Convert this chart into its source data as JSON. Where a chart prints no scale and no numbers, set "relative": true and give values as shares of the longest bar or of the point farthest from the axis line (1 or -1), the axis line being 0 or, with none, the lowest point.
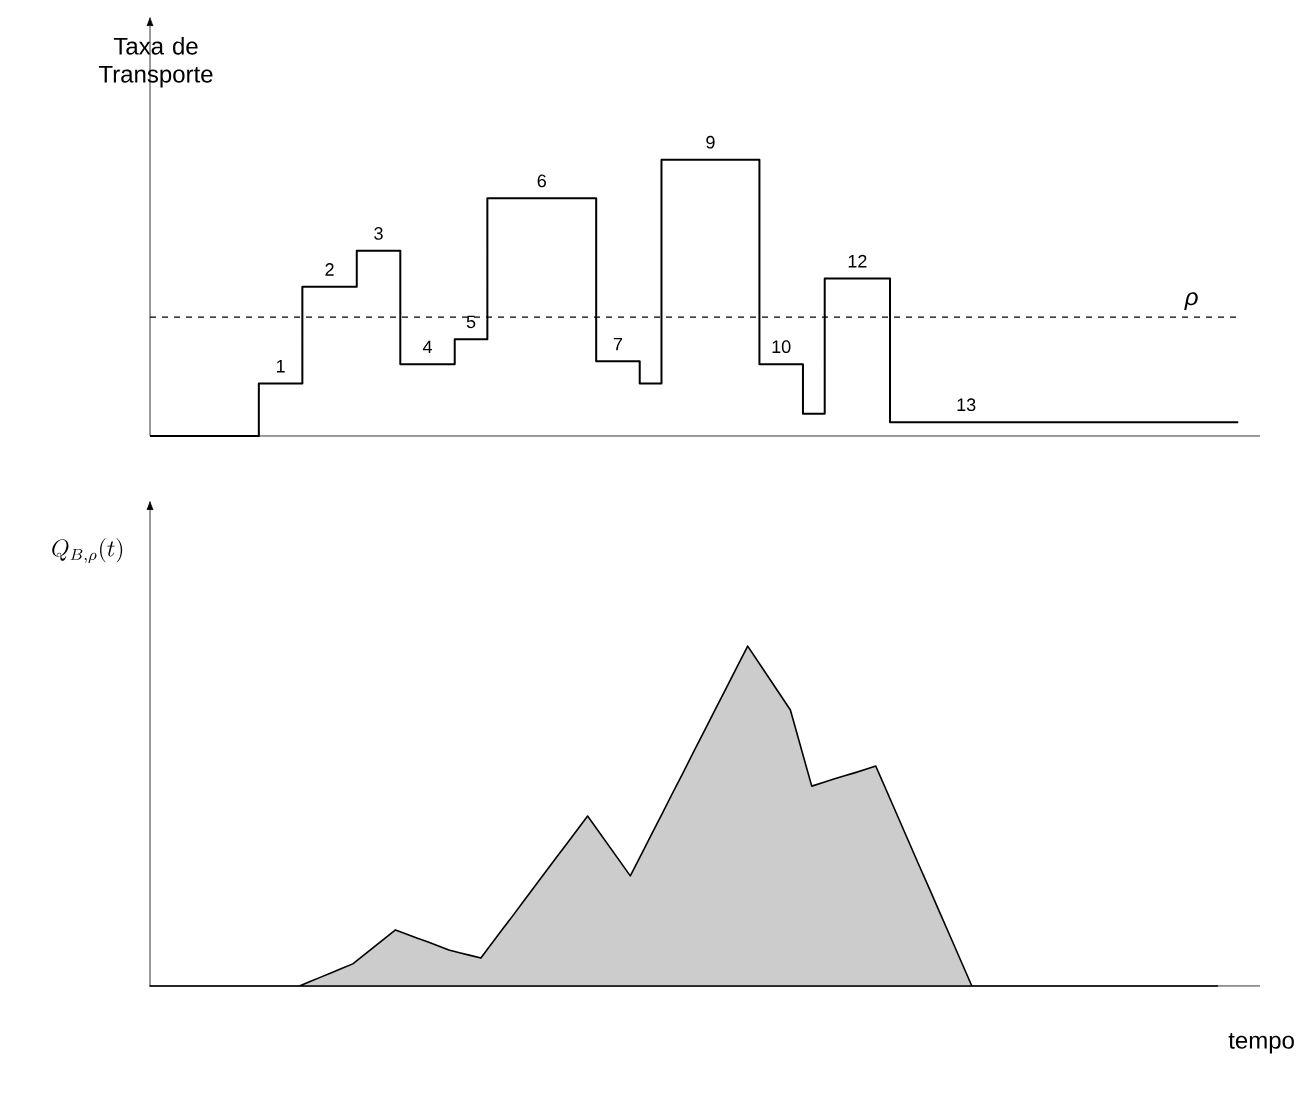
{
  "chart_data": [
    {
      "type": "step",
      "relative": true,
      "ylabel": "Taxa de Transporte",
      "color": "#000000",
      "categories": [
        null,
        null,
        null,
        null,
        null,
        null,
        null,
        null,
        null,
        null,
        null,
        null,
        null,
        null,
        null,
        null,
        null,
        null,
        null,
        null,
        null,
        null,
        null,
        null,
        null,
        null,
        null,
        null,
        null,
        null,
        null,
        null,
        null,
        null,
        null,
        null,
        null,
        null,
        null,
        null,
        null,
        null,
        null,
        null,
        null,
        null,
        null,
        null,
        null,
        null,
        null,
        null,
        null,
        null,
        null,
        null,
        null,
        null,
        null,
        null,
        null,
        null,
        null,
        null,
        null,
        null,
        null,
        null,
        null,
        null,
        null,
        null,
        null,
        null,
        null,
        null,
        null,
        null,
        null,
        null,
        null,
        null,
        null,
        null,
        null,
        null,
        null,
        null,
        null,
        null,
        null,
        null,
        null,
        null,
        null,
        null,
        null,
        null,
        null,
        null,
        null
      ],
      "values": [
        0,
        0,
        0,
        0,
        0,
        0,
        0,
        0,
        0,
        0,
        0.19,
        0.19,
        0.19,
        0.19,
        0.54,
        0.54,
        0.54,
        0.54,
        0.54,
        0.67,
        0.67,
        0.67,
        0.67,
        0.26,
        0.26,
        0.26,
        0.26,
        0.26,
        0.35,
        0.35,
        0.35,
        0.86,
        0.86,
        0.86,
        0.86,
        0.86,
        0.86,
        0.86,
        0.86,
        0.86,
        0.86,
        0.27,
        0.27,
        0.27,
        0.27,
        0.19,
        0.19,
        1,
        1,
        1,
        1,
        1,
        1,
        1,
        1,
        1,
        0.26,
        0.26,
        0.26,
        0.26,
        0.08,
        0.08,
        0.57,
        0.57,
        0.57,
        0.57,
        0.57,
        0.57,
        0.05,
        0.05,
        0.05,
        0.05,
        0.05,
        0.05,
        0.05,
        0.05,
        0.05,
        0.05,
        0.05,
        0.05,
        0.05,
        0.05,
        0.05,
        0.05,
        0.05,
        0.05,
        0.05,
        0.05,
        0.05,
        0.05,
        0.05,
        0.05,
        0.05,
        0.05,
        0.05,
        0.05,
        0.05,
        0.05,
        0.05,
        0.05,
        0.05
      ],
      "annotations": [
        "1",
        "2",
        "3",
        "4",
        "5",
        "6",
        "7",
        "9",
        "10",
        "12",
        "13"
      ],
      "ref_lines": [
        {
          "axis": "y",
          "value": 0.43,
          "label": "ρ",
          "line_style": "dashed"
        }
      ]
    },
    {
      "type": "area",
      "relative": true,
      "ylabel": "Q_{B,\\rho}(t)",
      "xlabel": "tempo",
      "color": "#cccccc",
      "categories": [
        null,
        null,
        null,
        null,
        null,
        null,
        null,
        null,
        null,
        null,
        null,
        null,
        null,
        null,
        null,
        null,
        null,
        null,
        null,
        null,
        null,
        null,
        null,
        null,
        null,
        null,
        null,
        null,
        null,
        null,
        null,
        null,
        null,
        null,
        null,
        null,
        null,
        null,
        null,
        null,
        null,
        null,
        null,
        null,
        null,
        null,
        null,
        null,
        null,
        null,
        null,
        null,
        null,
        null,
        null,
        null,
        null,
        null,
        null,
        null,
        null,
        null,
        null,
        null,
        null,
        null,
        null,
        null,
        null,
        null,
        null,
        null,
        null,
        null,
        null,
        null,
        null,
        null,
        null,
        null,
        null,
        null,
        null,
        null,
        null,
        null,
        null,
        null,
        null,
        null,
        null,
        null,
        null,
        null,
        null,
        null,
        null,
        null,
        null,
        null,
        null
      ],
      "values": [
        0,
        0,
        0,
        0,
        0,
        0,
        0,
        0,
        0,
        0,
        0,
        0,
        0,
        0,
        0,
        0.013,
        0.026,
        0.039,
        0.052,
        0.065,
        0.09,
        0.115,
        0.14,
        0.165,
        0.153,
        0.141,
        0.13,
        0.118,
        0.106,
        0.098,
        0.09,
        0.082,
        0.124,
        0.166,
        0.207,
        0.249,
        0.291,
        0.333,
        0.375,
        0.416,
        0.458,
        0.5,
        0.456,
        0.412,
        0.368,
        0.324,
        0.385,
        0.447,
        0.508,
        0.57,
        0.631,
        0.693,
        0.754,
        0.816,
        0.877,
        0.939,
        1,
        0.953,
        0.906,
        0.859,
        0.812,
        0.7,
        0.588,
        0.598,
        0.608,
        0.618,
        0.627,
        0.637,
        0.647,
        0.575,
        0.503,
        0.431,
        0.359,
        0.288,
        0.216,
        0.144,
        0.072,
        0,
        0,
        0,
        0,
        0,
        0,
        0,
        0,
        0,
        0,
        0,
        0,
        0,
        0,
        0,
        0,
        0,
        0,
        0,
        0,
        0,
        0,
        0,
        0
      ]
    }
  ]
}
